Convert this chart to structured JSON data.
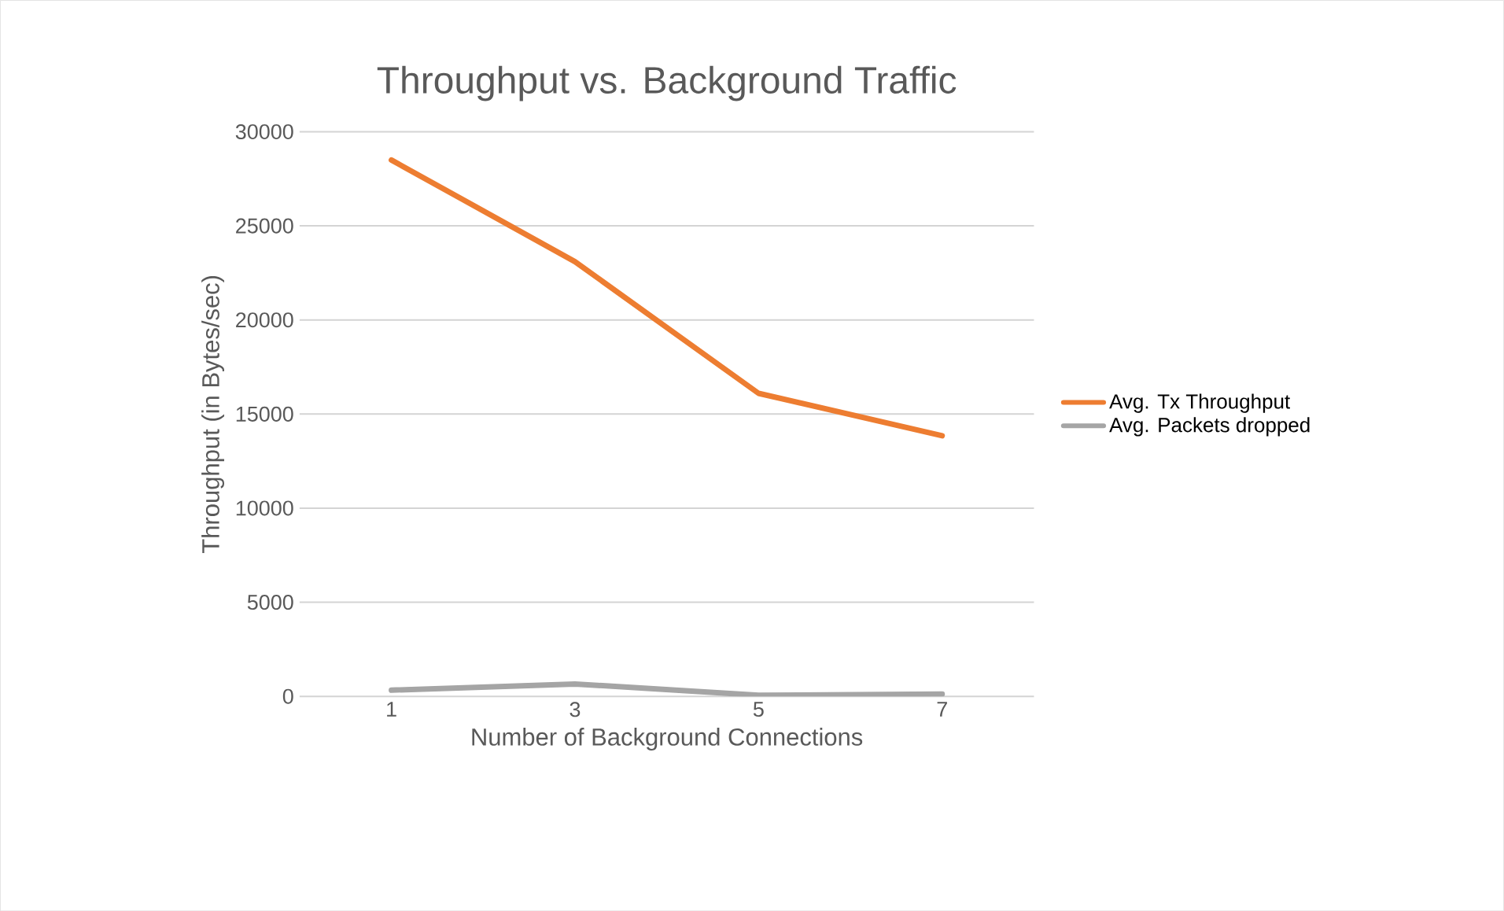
{
  "chart_data": {
    "type": "line",
    "title": "Throughput vs. Background Traffic",
    "xlabel": "Number of Background Connections",
    "ylabel": "Throughput (in Bytes/sec)",
    "categories": [
      "1",
      "3",
      "5",
      "7"
    ],
    "series": [
      {
        "name": "Avg. Tx Throughput",
        "color": "#ed7d31",
        "values": [
          28500,
          23100,
          16100,
          13850
        ]
      },
      {
        "name": "Avg. Packets dropped",
        "color": "#a5a5a5",
        "values": [
          330,
          660,
          60,
          120
        ]
      }
    ],
    "ylim": [
      0,
      30000
    ],
    "yticks": [
      0,
      5000,
      10000,
      15000,
      20000,
      25000,
      30000
    ],
    "grid": "y",
    "legend": "right",
    "marker": "none",
    "line_style": "solid"
  }
}
